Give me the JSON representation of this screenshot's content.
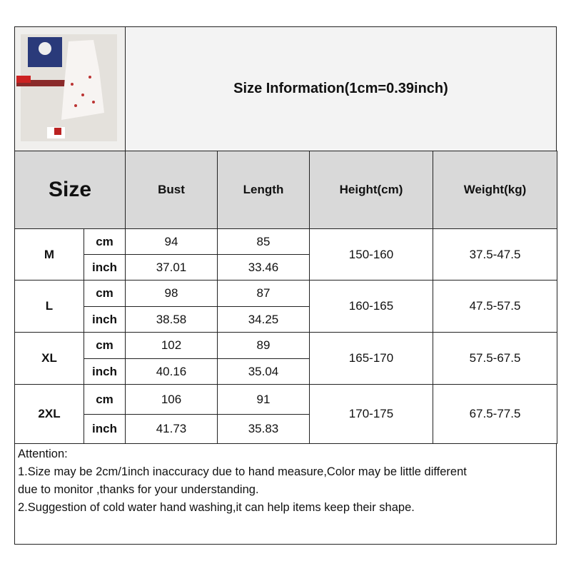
{
  "title": "Size Information(1cm=0.39inch)",
  "headers": {
    "size": "Size",
    "bust": "Bust",
    "length": "Length",
    "height": "Height(cm)",
    "weight": "Weight(kg)"
  },
  "units": {
    "cm": "cm",
    "inch": "inch"
  },
  "rows": [
    {
      "size": "M",
      "bust_cm": "94",
      "length_cm": "85",
      "bust_inch": "37.01",
      "length_inch": "33.46",
      "height": "150-160",
      "weight": "37.5-47.5"
    },
    {
      "size": "L",
      "bust_cm": "98",
      "length_cm": "87",
      "bust_inch": "38.58",
      "length_inch": "34.25",
      "height": "160-165",
      "weight": "47.5-57.5"
    },
    {
      "size": "XL",
      "bust_cm": "102",
      "length_cm": "89",
      "bust_inch": "40.16",
      "length_inch": "35.04",
      "height": "165-170",
      "weight": "57.5-67.5"
    },
    {
      "size": "2XL",
      "bust_cm": "106",
      "length_cm": "91",
      "bust_inch": "41.73",
      "length_inch": "35.83",
      "height": "170-175",
      "weight": "67.5-77.5"
    }
  ],
  "attention": {
    "heading": "Attention:",
    "line1": "1.Size may be 2cm/1inch inaccuracy due to hand measure,Color may be little different\ndue to monitor ,thanks for your understanding.",
    "line2": "2.Suggestion of cold water hand washing,it can help items keep their shape."
  }
}
